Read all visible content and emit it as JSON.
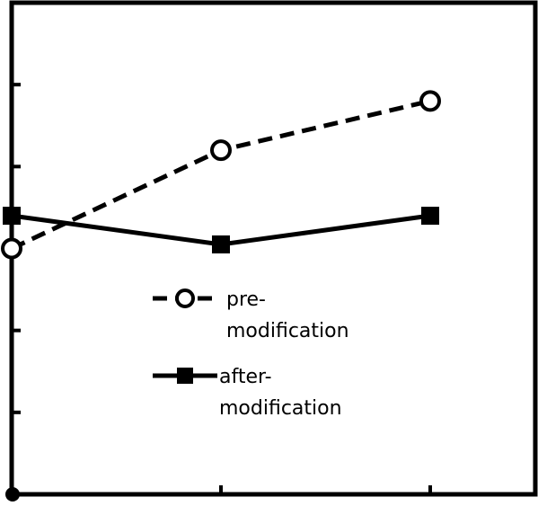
{
  "chart_data": {
    "type": "line",
    "title": "",
    "xlabel": "",
    "ylabel": "",
    "x": [
      0,
      1,
      2
    ],
    "xlim": [
      0,
      2.5
    ],
    "ylim": [
      0,
      6
    ],
    "grid": false,
    "legend_position": "lower-center",
    "series": [
      {
        "name_lines": [
          "pre-",
          "modification"
        ],
        "values": [
          3.0,
          4.2,
          4.8
        ],
        "line_style": "dashed",
        "marker": "open-circle",
        "color": "#000000"
      },
      {
        "name_lines": [
          "after-",
          "modification"
        ],
        "values": [
          3.4,
          3.05,
          3.4
        ],
        "line_style": "solid",
        "marker": "filled-square",
        "color": "#000000"
      }
    ]
  }
}
